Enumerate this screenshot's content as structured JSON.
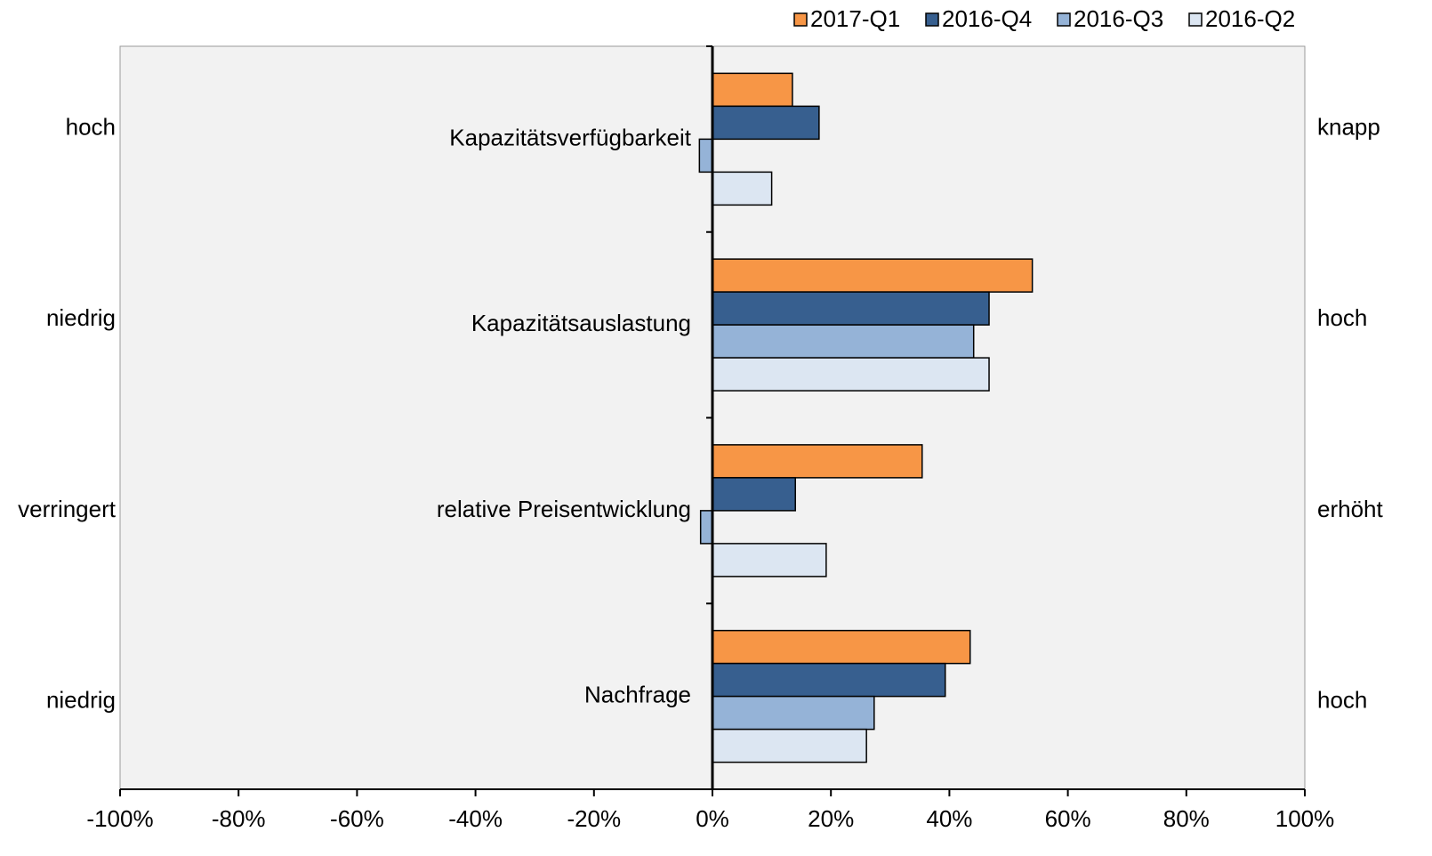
{
  "chart_data": {
    "type": "bar",
    "orientation": "horizontal",
    "categories": [
      "Kapazitätsverfügbarkeit",
      "Kapazitätsauslastung",
      "relative Preisentwicklung",
      "Nachfrage"
    ],
    "left_labels": [
      "hoch",
      "niedrig",
      "verringert",
      "niedrig"
    ],
    "right_labels": [
      "knapp",
      "hoch",
      "erhöht",
      "hoch"
    ],
    "series": [
      {
        "name": "2017-Q1",
        "color": "#f79646",
        "values": [
          13.5,
          54,
          35.4,
          43.5
        ]
      },
      {
        "name": "2016-Q4",
        "color": "#375f8f",
        "values": [
          18,
          46.7,
          14,
          39.3
        ]
      },
      {
        "name": "2016-Q3",
        "color": "#95b3d7",
        "values": [
          -2.2,
          44.1,
          -2,
          27.3
        ]
      },
      {
        "name": "2016-Q2",
        "color": "#dce6f2",
        "values": [
          10,
          46.7,
          19.2,
          26
        ]
      }
    ],
    "xlim": [
      -100,
      100
    ],
    "xticks": [
      {
        "value": -100,
        "label": "-100%"
      },
      {
        "value": -80,
        "label": "-80%"
      },
      {
        "value": -60,
        "label": "-60%"
      },
      {
        "value": -40,
        "label": "-40%"
      },
      {
        "value": -20,
        "label": "-20%"
      },
      {
        "value": 0,
        "label": "0%"
      },
      {
        "value": 20,
        "label": "20%"
      },
      {
        "value": 40,
        "label": "40%"
      },
      {
        "value": 60,
        "label": "60%"
      },
      {
        "value": 80,
        "label": "80%"
      },
      {
        "value": 100,
        "label": "100%"
      }
    ],
    "legend": "top-right"
  }
}
